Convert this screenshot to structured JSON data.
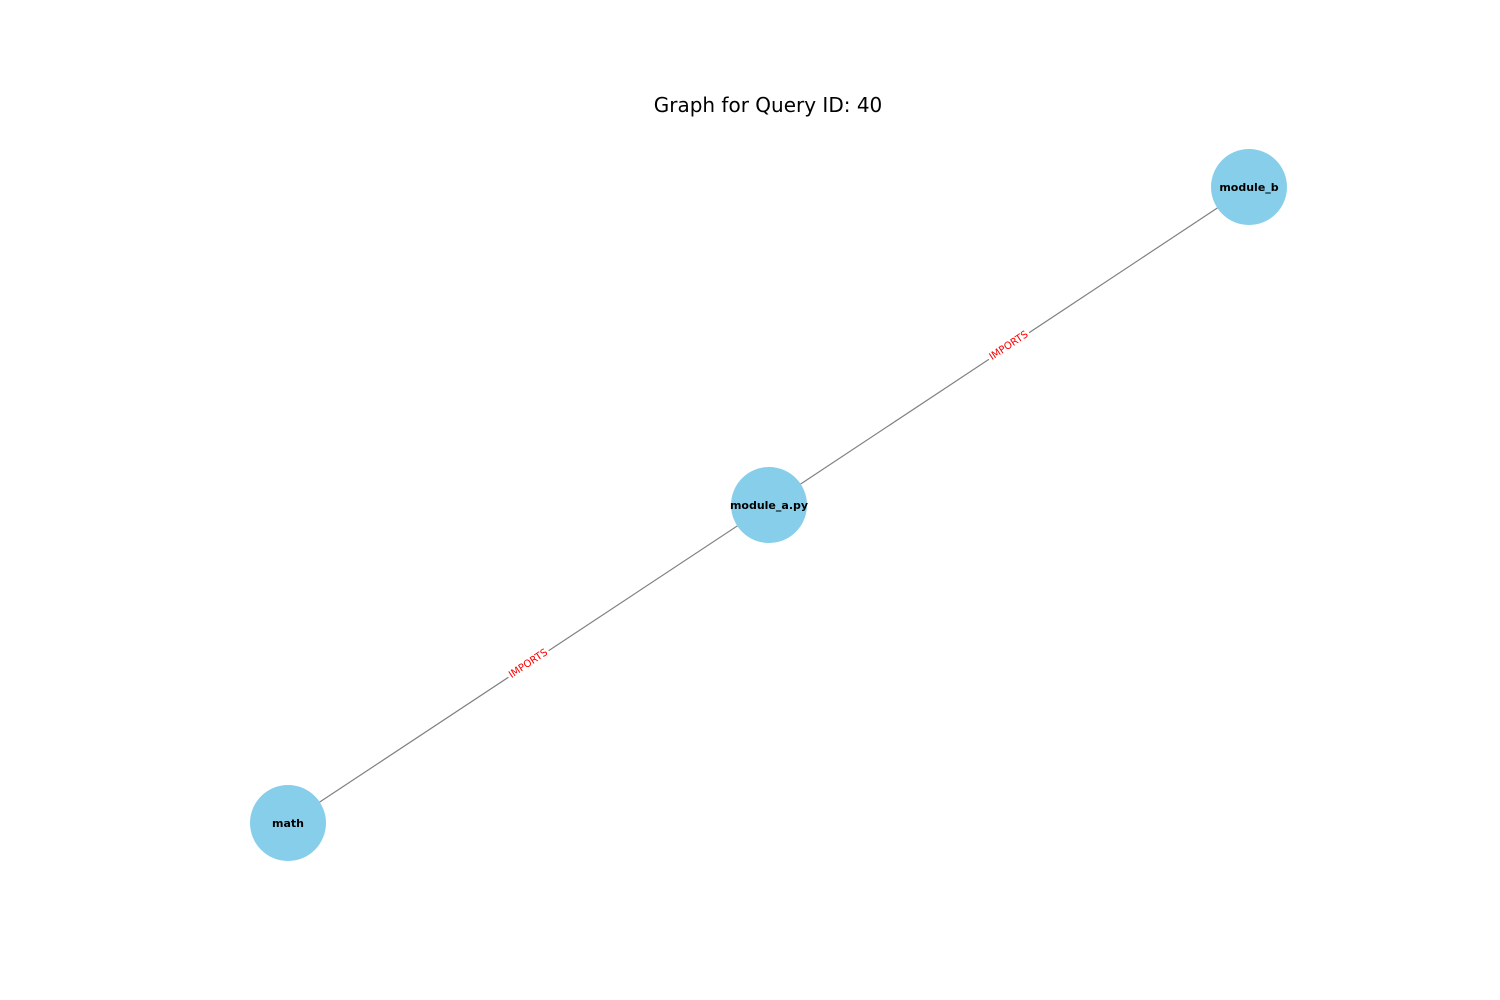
{
  "title": "Graph for Query ID: 40",
  "colors": {
    "node_fill": "#87ceeb",
    "edge_stroke": "#808080",
    "edge_label": "#ff0000",
    "background": "#ffffff"
  },
  "nodes": [
    {
      "id": "module_b",
      "label": "module_b"
    },
    {
      "id": "module_a.py",
      "label": "module_a.py"
    },
    {
      "id": "math",
      "label": "math"
    }
  ],
  "edges": [
    {
      "source": "module_a.py",
      "target": "module_b",
      "label": "IMPORTS"
    },
    {
      "source": "module_a.py",
      "target": "math",
      "label": "IMPORTS"
    }
  ]
}
